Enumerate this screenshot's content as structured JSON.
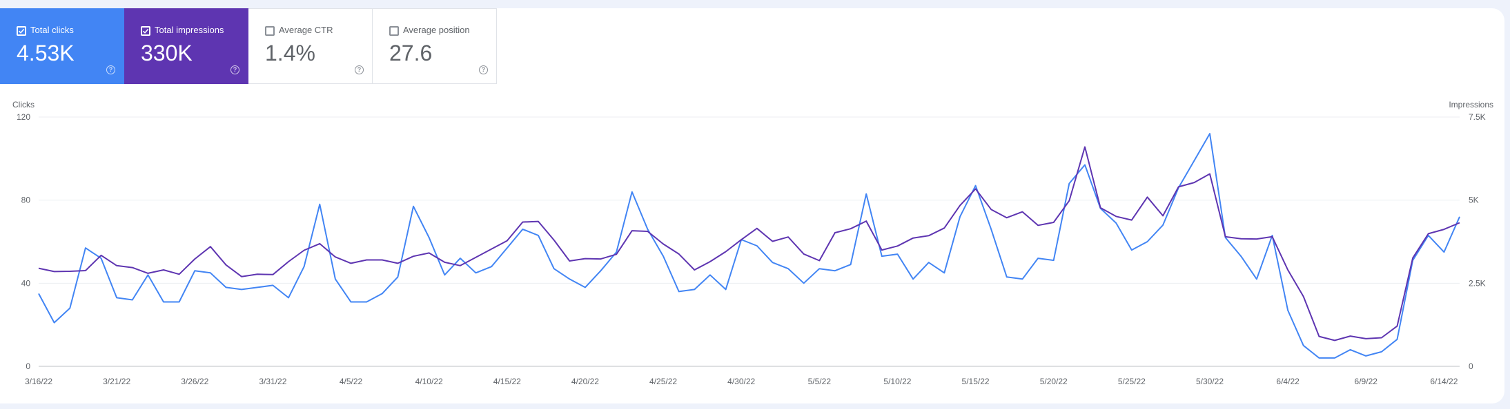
{
  "metric_cards": [
    {
      "label": "Total clicks",
      "value": "4.53K",
      "checked": true,
      "color": "#4285f4"
    },
    {
      "label": "Total impressions",
      "value": "330K",
      "checked": true,
      "color": "#5e35b1"
    },
    {
      "label": "Average CTR",
      "value": "1.4%",
      "checked": false
    },
    {
      "label": "Average position",
      "value": "27.6",
      "checked": false
    }
  ],
  "chart_data": {
    "type": "line",
    "xlabel": "",
    "y_left_label": "Clicks",
    "y_right_label": "Impressions",
    "y_left_range": [
      0,
      120
    ],
    "y_right_range": [
      0,
      7500
    ],
    "y_left_ticks": [
      "0",
      "40",
      "80",
      "120"
    ],
    "y_right_ticks": [
      "0",
      "2.5K",
      "5K",
      "7.5K"
    ],
    "x_tick_labels": [
      "3/16/22",
      "3/21/22",
      "3/26/22",
      "3/31/22",
      "4/5/22",
      "4/10/22",
      "4/15/22",
      "4/20/22",
      "4/25/22",
      "4/30/22",
      "5/5/22",
      "5/10/22",
      "5/15/22",
      "5/20/22",
      "5/25/22",
      "5/30/22",
      "6/4/22",
      "6/9/22",
      "6/14/22"
    ],
    "x_start_date": "3/16/22",
    "x_end_date": "6/14/22",
    "grid": "horizontal",
    "series": [
      {
        "name": "Total clicks",
        "axis": "left",
        "color": "#4285f4",
        "values": [
          35,
          21,
          28,
          57,
          52,
          33,
          32,
          44,
          31,
          31,
          46,
          45,
          38,
          37,
          38,
          39,
          33,
          48,
          78,
          42,
          31,
          31,
          35,
          43,
          77,
          62,
          44,
          52,
          45,
          48,
          57,
          66,
          63,
          47,
          42,
          38,
          46,
          55,
          84,
          66,
          53,
          36,
          37,
          44,
          37,
          61,
          58,
          50,
          47,
          40,
          47,
          46,
          49,
          83,
          53,
          54,
          42,
          50,
          45,
          72,
          87,
          66,
          43,
          42,
          52,
          51,
          88,
          97,
          76,
          69,
          56,
          60,
          68,
          86,
          99,
          112,
          62,
          53,
          42,
          63,
          27,
          10,
          4,
          4,
          8,
          5,
          7,
          13,
          51,
          63,
          55,
          72
        ]
      },
      {
        "name": "Total impressions",
        "axis": "right",
        "color": "#5e35b1",
        "values": [
          2950,
          2850,
          2860,
          2880,
          3340,
          3030,
          2970,
          2800,
          2900,
          2770,
          3230,
          3600,
          3050,
          2700,
          2770,
          2760,
          3150,
          3490,
          3690,
          3290,
          3100,
          3200,
          3200,
          3100,
          3310,
          3410,
          3130,
          3030,
          3280,
          3530,
          3780,
          4340,
          4360,
          3800,
          3170,
          3240,
          3230,
          3370,
          4080,
          4060,
          3680,
          3380,
          2900,
          3150,
          3450,
          3810,
          4150,
          3760,
          3890,
          3380,
          3180,
          4020,
          4140,
          4370,
          3500,
          3620,
          3860,
          3930,
          4160,
          4840,
          5340,
          4720,
          4470,
          4650,
          4240,
          4330,
          4980,
          6600,
          4770,
          4510,
          4400,
          5090,
          4530,
          5400,
          5530,
          5790,
          3900,
          3840,
          3830,
          3900,
          2900,
          2100,
          900,
          780,
          910,
          830,
          860,
          1210,
          3260,
          3990,
          4120,
          4320
        ]
      }
    ]
  }
}
